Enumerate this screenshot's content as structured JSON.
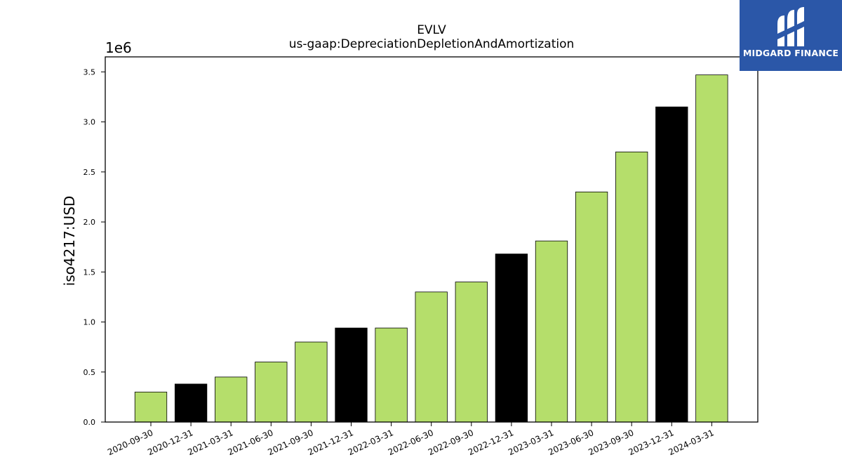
{
  "brand": {
    "name": "MIDGARD FINANCE",
    "bg_color": "#2b57a8"
  },
  "chart_data": {
    "type": "bar",
    "title": "EVLV",
    "subtitle": "us-gaap:DepreciationDepletionAndAmortization",
    "ylabel": "iso4217:USD",
    "xlabel": "",
    "y_offset_label": "1e6",
    "ylim": [
      0,
      3.65
    ],
    "y_scale": 1000000,
    "y_ticks": [
      "0.0",
      "0.5",
      "1.0",
      "1.5",
      "2.0",
      "2.5",
      "3.0",
      "3.5"
    ],
    "categories": [
      "2020-09-30",
      "2020-12-31",
      "2021-03-31",
      "2021-06-30",
      "2021-09-30",
      "2021-12-31",
      "2022-03-31",
      "2022-06-30",
      "2022-09-30",
      "2022-12-31",
      "2023-03-31",
      "2023-06-30",
      "2023-09-30",
      "2023-12-31",
      "2024-03-31"
    ],
    "values": [
      0.3,
      0.38,
      0.45,
      0.6,
      0.8,
      0.94,
      0.94,
      1.3,
      1.4,
      1.68,
      1.81,
      2.3,
      2.7,
      3.15,
      3.47
    ],
    "fiscal_year_end": [
      false,
      true,
      false,
      false,
      false,
      true,
      false,
      false,
      false,
      true,
      false,
      false,
      false,
      true,
      false
    ],
    "colors": {
      "quarter": "#b5de6b",
      "year_end": "#000000",
      "edge": "#000000"
    },
    "grid": false,
    "legend": "none"
  }
}
